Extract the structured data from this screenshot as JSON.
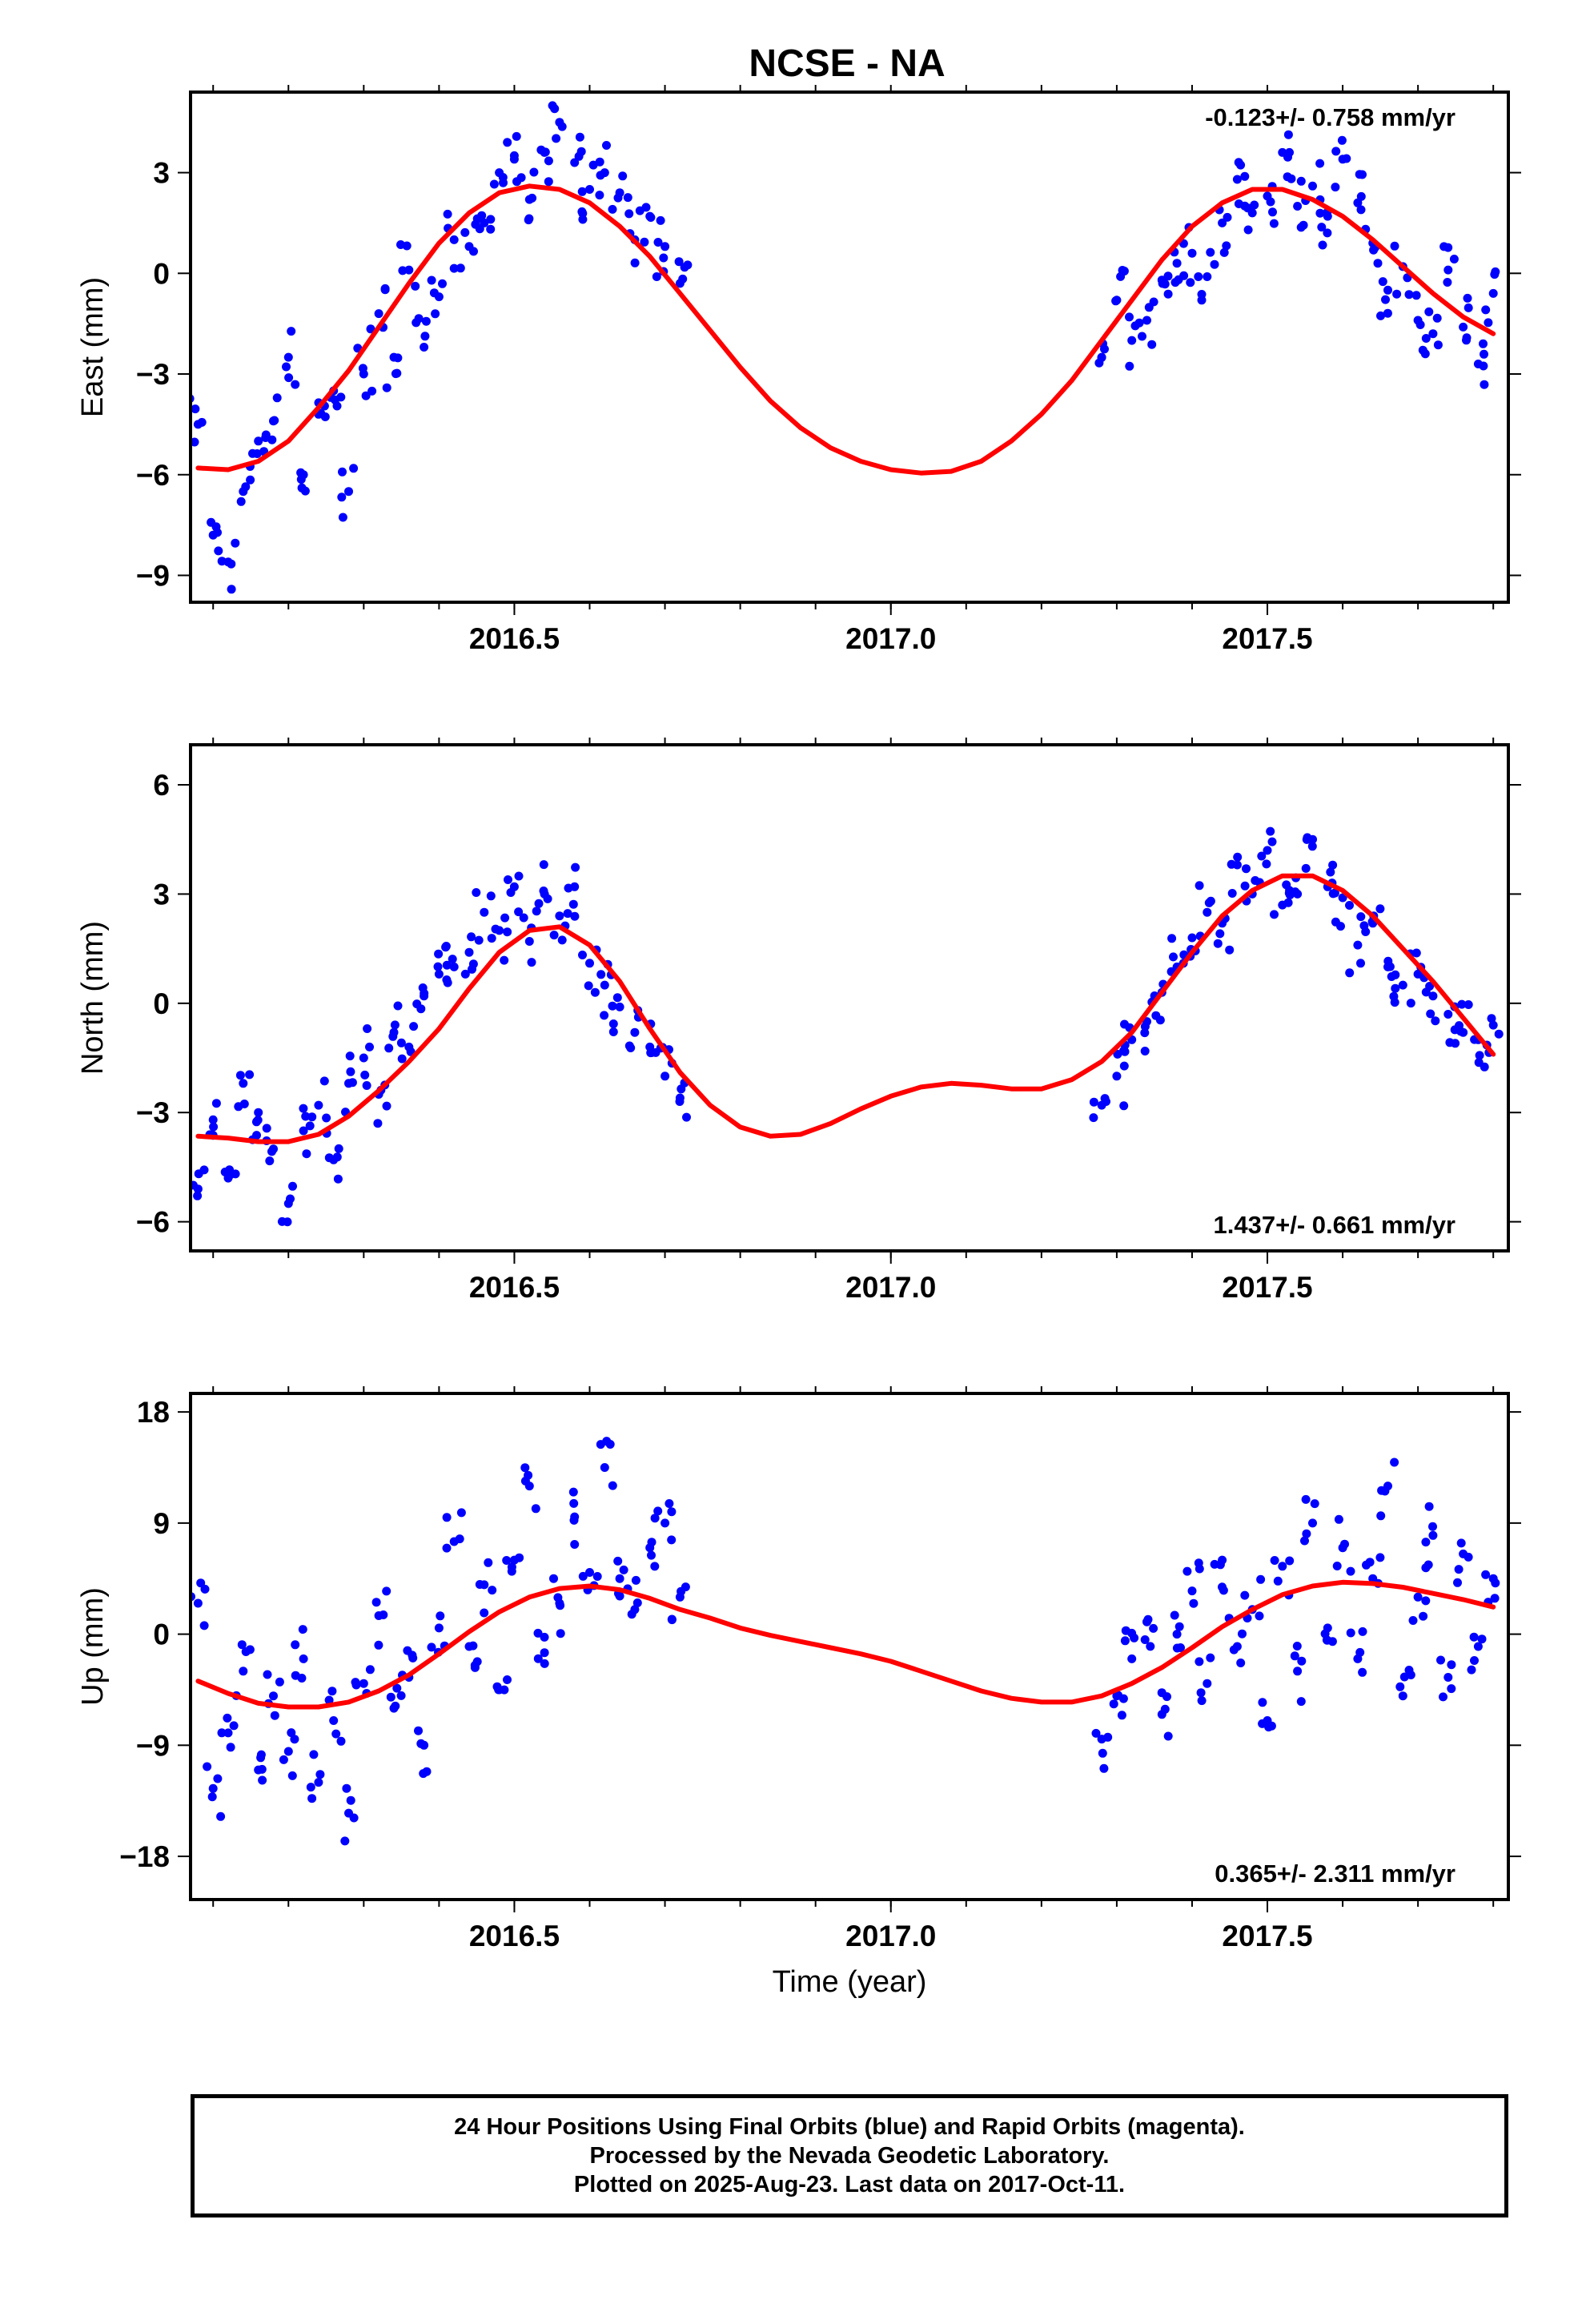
{
  "title": "NCSE - NA",
  "colors": {
    "data_points": "#0000ff",
    "model_fit": "#ff0000",
    "frame": "#000000"
  },
  "footer": {
    "line1": "24 Hour Positions Using Final Orbits (blue) and Rapid Orbits (magenta).",
    "line2": "Processed by the Nevada Geodetic Laboratory.",
    "line3": "Plotted on 2025-Aug-23. Last data on 2017-Oct-11."
  },
  "chart_data": [
    {
      "type": "scatter",
      "panel": "east",
      "ylabel": "East (mm)",
      "xlabel": "",
      "xlim": [
        2016.07,
        2017.82
      ],
      "ylim": [
        -9.8,
        5.4
      ],
      "x_ticks": [
        "2016.5",
        "2017.0",
        "2017.5"
      ],
      "y_ticks": [
        "3",
        "0",
        "−3",
        "−6",
        "−9"
      ],
      "y_tick_values": [
        3,
        0,
        -3,
        -6,
        -9
      ],
      "grid": false,
      "annotation": "-0.123+/- 0.758 mm/yr",
      "annotation_position": "top-right",
      "series": [
        {
          "kind": "points",
          "x": [
            2016.08,
            2016.1,
            2016.12,
            2016.14,
            2016.16,
            2016.18,
            2016.2,
            2016.22,
            2016.24,
            2016.26,
            2016.28,
            2016.3,
            2016.32,
            2016.34,
            2016.36,
            2016.38,
            2016.4,
            2016.42,
            2016.44,
            2016.46,
            2016.48,
            2016.5,
            2016.52,
            2016.54,
            2016.56,
            2016.58,
            2016.6,
            2016.62,
            2016.64,
            2016.66,
            2016.68,
            2016.7,
            2016.72,
            2017.28,
            2017.3,
            2017.32,
            2017.34,
            2017.36,
            2017.38,
            2017.4,
            2017.42,
            2017.44,
            2017.46,
            2017.48,
            2017.5,
            2017.52,
            2017.54,
            2017.56,
            2017.58,
            2017.6,
            2017.62,
            2017.64,
            2017.66,
            2017.68,
            2017.7,
            2017.72,
            2017.74,
            2017.76,
            2017.78,
            2017.8
          ],
          "y": [
            -4.5,
            -7.8,
            -8.6,
            -6.5,
            -5.0,
            -4.4,
            -2.5,
            -6.0,
            -4.2,
            -3.5,
            -6.5,
            -3.0,
            -1.2,
            -2.5,
            0.1,
            -2.2,
            -0.7,
            1.0,
            0.8,
            1.5,
            3.0,
            3.4,
            2.2,
            3.6,
            4.5,
            3.3,
            2.5,
            3.0,
            2.4,
            1.0,
            1.7,
            0.8,
            -0.3,
            -2.5,
            -0.8,
            -2.0,
            -1.4,
            -0.2,
            0.3,
            0.6,
            -0.1,
            1.5,
            2.8,
            1.8,
            2.3,
            3.6,
            2.0,
            2.6,
            1.7,
            3.4,
            2.1,
            0.9,
            -0.5,
            0.2,
            -1.4,
            -1.8,
            0.1,
            -1.6,
            -2.7,
            -0.6
          ]
        },
        {
          "kind": "model",
          "x": [
            2016.08,
            2016.12,
            2016.16,
            2016.2,
            2016.24,
            2016.28,
            2016.32,
            2016.36,
            2016.4,
            2016.44,
            2016.48,
            2016.52,
            2016.56,
            2016.6,
            2016.64,
            2016.68,
            2016.72,
            2016.76,
            2016.8,
            2016.84,
            2016.88,
            2016.92,
            2016.96,
            2017.0,
            2017.04,
            2017.08,
            2017.12,
            2017.16,
            2017.2,
            2017.24,
            2017.28,
            2017.32,
            2017.36,
            2017.4,
            2017.44,
            2017.48,
            2017.52,
            2017.56,
            2017.6,
            2017.64,
            2017.68,
            2017.72,
            2017.76,
            2017.8
          ],
          "y": [
            -5.8,
            -5.85,
            -5.6,
            -5.0,
            -4.0,
            -2.9,
            -1.6,
            -0.3,
            0.9,
            1.8,
            2.4,
            2.6,
            2.5,
            2.1,
            1.4,
            0.5,
            -0.6,
            -1.7,
            -2.8,
            -3.8,
            -4.6,
            -5.2,
            -5.6,
            -5.85,
            -5.95,
            -5.9,
            -5.6,
            -5.0,
            -4.2,
            -3.2,
            -2.0,
            -0.8,
            0.4,
            1.4,
            2.1,
            2.5,
            2.5,
            2.2,
            1.7,
            1.0,
            0.2,
            -0.6,
            -1.3,
            -1.8
          ]
        }
      ]
    },
    {
      "type": "scatter",
      "panel": "north",
      "ylabel": "North (mm)",
      "xlabel": "",
      "xlim": [
        2016.07,
        2017.82
      ],
      "ylim": [
        -6.8,
        7.1
      ],
      "x_ticks": [
        "2016.5",
        "2017.0",
        "2017.5"
      ],
      "y_ticks": [
        "6",
        "3",
        "0",
        "−3",
        "−6"
      ],
      "y_tick_values": [
        6,
        3,
        0,
        -3,
        -6
      ],
      "grid": false,
      "annotation": "1.437+/- 0.661 mm/yr",
      "annotation_position": "bottom-right",
      "series": [
        {
          "kind": "points",
          "x": [
            2016.08,
            2016.1,
            2016.12,
            2016.14,
            2016.16,
            2016.18,
            2016.2,
            2016.22,
            2016.24,
            2016.26,
            2016.28,
            2016.3,
            2016.32,
            2016.34,
            2016.36,
            2016.38,
            2016.4,
            2016.42,
            2016.44,
            2016.46,
            2016.48,
            2016.5,
            2016.52,
            2016.54,
            2016.56,
            2016.58,
            2016.6,
            2016.62,
            2016.64,
            2016.66,
            2016.68,
            2016.7,
            2016.72,
            2017.28,
            2017.3,
            2017.32,
            2017.34,
            2017.36,
            2017.38,
            2017.4,
            2017.42,
            2017.44,
            2017.46,
            2017.48,
            2017.5,
            2017.52,
            2017.54,
            2017.56,
            2017.58,
            2017.6,
            2017.62,
            2017.64,
            2017.66,
            2017.68,
            2017.7,
            2017.72,
            2017.74,
            2017.76,
            2017.78,
            2017.8
          ],
          "y": [
            -5.1,
            -3.2,
            -4.8,
            -2.2,
            -3.0,
            -4.0,
            -5.5,
            -3.5,
            -2.8,
            -4.3,
            -2.2,
            -1.5,
            -2.5,
            -0.8,
            -1.2,
            0.2,
            0.8,
            1.0,
            1.4,
            2.5,
            2.0,
            3.2,
            1.7,
            3.0,
            2.4,
            3.2,
            1.1,
            0.5,
            -0.1,
            -0.8,
            -1.2,
            -2.0,
            -2.6,
            -2.8,
            -2.0,
            -1.0,
            -0.5,
            0.3,
            1.0,
            1.8,
            2.5,
            2.2,
            3.8,
            3.0,
            4.2,
            2.7,
            3.0,
            4.5,
            3.2,
            2.9,
            1.6,
            2.2,
            1.0,
            0.5,
            0.8,
            0.2,
            -0.3,
            -0.8,
            -1.0,
            -0.6
          ]
        },
        {
          "kind": "model",
          "x": [
            2016.08,
            2016.12,
            2016.16,
            2016.2,
            2016.24,
            2016.28,
            2016.32,
            2016.36,
            2016.4,
            2016.44,
            2016.48,
            2016.52,
            2016.56,
            2016.6,
            2016.64,
            2016.68,
            2016.72,
            2016.76,
            2016.8,
            2016.84,
            2016.88,
            2016.92,
            2016.96,
            2017.0,
            2017.04,
            2017.08,
            2017.12,
            2017.16,
            2017.2,
            2017.24,
            2017.28,
            2017.32,
            2017.36,
            2017.4,
            2017.44,
            2017.48,
            2017.52,
            2017.56,
            2017.6,
            2017.64,
            2017.68,
            2017.72,
            2017.76,
            2017.8
          ],
          "y": [
            -3.65,
            -3.7,
            -3.8,
            -3.8,
            -3.6,
            -3.1,
            -2.4,
            -1.6,
            -0.7,
            0.4,
            1.4,
            2.0,
            2.1,
            1.6,
            0.6,
            -0.7,
            -1.9,
            -2.8,
            -3.4,
            -3.65,
            -3.6,
            -3.3,
            -2.9,
            -2.55,
            -2.3,
            -2.2,
            -2.25,
            -2.35,
            -2.35,
            -2.1,
            -1.6,
            -0.8,
            0.3,
            1.4,
            2.4,
            3.1,
            3.5,
            3.5,
            3.1,
            2.4,
            1.5,
            0.6,
            -0.4,
            -1.4
          ]
        }
      ]
    },
    {
      "type": "scatter",
      "panel": "up",
      "ylabel": "Up (mm)",
      "xlabel": "Time (year)",
      "xlim": [
        2016.07,
        2017.82
      ],
      "ylim": [
        -21.5,
        19.5
      ],
      "x_ticks": [
        "2016.5",
        "2017.0",
        "2017.5"
      ],
      "y_ticks": [
        "18",
        "9",
        "0",
        "−9",
        "−18"
      ],
      "y_tick_values": [
        18,
        9,
        0,
        -9,
        -18
      ],
      "grid": false,
      "annotation": "0.365+/- 2.311 mm/yr",
      "annotation_position": "bottom-right",
      "series": [
        {
          "kind": "points",
          "x": [
            2016.08,
            2016.1,
            2016.12,
            2016.14,
            2016.16,
            2016.18,
            2016.2,
            2016.22,
            2016.24,
            2016.26,
            2016.28,
            2016.3,
            2016.32,
            2016.34,
            2016.36,
            2016.38,
            2016.4,
            2016.42,
            2016.44,
            2016.46,
            2016.48,
            2016.5,
            2016.52,
            2016.54,
            2016.56,
            2016.58,
            2016.6,
            2016.62,
            2016.64,
            2016.66,
            2016.68,
            2016.7,
            2016.72,
            2017.28,
            2017.3,
            2017.32,
            2017.34,
            2017.36,
            2017.38,
            2017.4,
            2017.42,
            2017.44,
            2017.46,
            2017.48,
            2017.5,
            2017.52,
            2017.54,
            2017.56,
            2017.58,
            2017.6,
            2017.62,
            2017.64,
            2017.66,
            2017.68,
            2017.7,
            2017.72,
            2017.74,
            2017.76,
            2017.78,
            2017.8
          ],
          "y": [
            2.5,
            -12.5,
            -8.0,
            -3.0,
            -11.0,
            -5.0,
            -9.5,
            -2.0,
            -12.0,
            -7.0,
            -14.5,
            -4.0,
            1.5,
            -6.0,
            -3.5,
            -9.0,
            0.5,
            7.5,
            -1.0,
            4.0,
            -4.5,
            6.0,
            12.0,
            -1.5,
            2.5,
            9.5,
            5.0,
            13.5,
            4.5,
            2.0,
            7.0,
            9.0,
            3.0,
            -8.5,
            -5.0,
            -2.0,
            1.0,
            -6.5,
            0.0,
            3.5,
            -4.0,
            6.0,
            -1.0,
            2.0,
            -7.0,
            5.5,
            -3.0,
            9.0,
            0.5,
            7.0,
            -2.0,
            4.5,
            12.0,
            -5.0,
            3.0,
            8.0,
            -3.5,
            6.5,
            -1.0,
            4.5
          ]
        },
        {
          "kind": "model",
          "x": [
            2016.08,
            2016.12,
            2016.16,
            2016.2,
            2016.24,
            2016.28,
            2016.32,
            2016.36,
            2016.4,
            2016.44,
            2016.48,
            2016.52,
            2016.56,
            2016.6,
            2016.64,
            2016.68,
            2016.72,
            2016.76,
            2016.8,
            2016.84,
            2016.88,
            2016.92,
            2016.96,
            2017.0,
            2017.04,
            2017.08,
            2017.12,
            2017.16,
            2017.2,
            2017.24,
            2017.28,
            2017.32,
            2017.36,
            2017.4,
            2017.44,
            2017.48,
            2017.52,
            2017.56,
            2017.6,
            2017.64,
            2017.68,
            2017.72,
            2017.76,
            2017.8
          ],
          "y": [
            -3.8,
            -4.8,
            -5.6,
            -5.9,
            -5.9,
            -5.5,
            -4.6,
            -3.3,
            -1.6,
            0.2,
            1.8,
            3.0,
            3.7,
            3.9,
            3.6,
            2.9,
            2.0,
            1.3,
            0.5,
            -0.1,
            -0.6,
            -1.1,
            -1.6,
            -2.2,
            -3.0,
            -3.8,
            -4.6,
            -5.2,
            -5.5,
            -5.5,
            -5.0,
            -4.0,
            -2.7,
            -1.1,
            0.6,
            2.0,
            3.2,
            3.9,
            4.2,
            4.1,
            3.8,
            3.3,
            2.8,
            2.2
          ]
        }
      ]
    }
  ]
}
